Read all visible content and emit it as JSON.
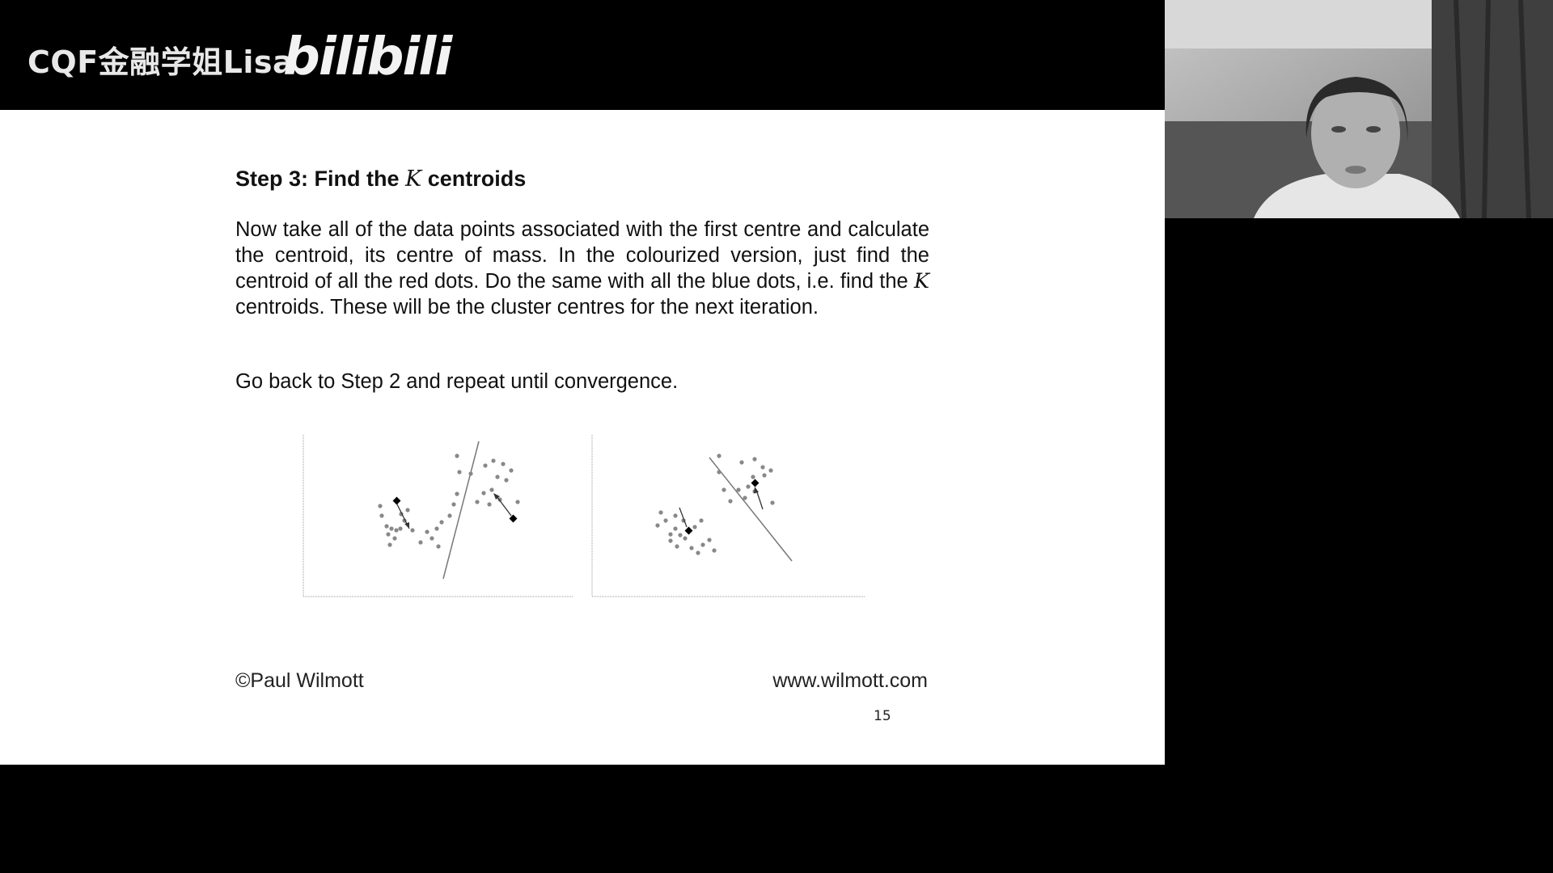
{
  "overlay": {
    "channel_name": "CQF金融学姐Lisa",
    "platform_logo": "bilibili"
  },
  "slide": {
    "title_prefix": "Step 3:  Find the ",
    "title_var": "K",
    "title_suffix": " centroids",
    "para1_a": "Now take all of the data points associated with the first centre and calculate the centroid, its centre of mass. In the colourized version, just find the centroid of all the red dots. Do the same with all the blue dots, i.e. find the ",
    "para1_var": "K",
    "para1_b": " centroids. These will be the cluster centres for the next iteration.",
    "para2": "Go back to Step 2 and repeat until convergence.",
    "copyright": "©Paul Wilmott",
    "website": "www.wilmott.com",
    "page_number": "15"
  },
  "webcam": {
    "icon": "presenter-video-feed"
  }
}
